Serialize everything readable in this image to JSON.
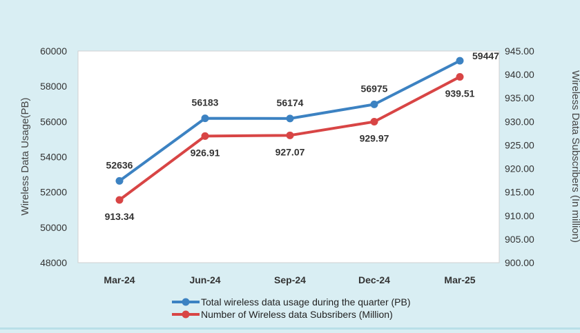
{
  "chart_data": {
    "type": "line",
    "title": "",
    "categories": [
      "Mar-24",
      "Jun-24",
      "Sep-24",
      "Dec-24",
      "Mar-25"
    ],
    "ylabel": "Wireless Data Usage(PB)",
    "ylabel_right": "Wireless Data Subscribers (In million)",
    "ylim": [
      48000,
      60000
    ],
    "y_ticks": [
      "48000",
      "50000",
      "52000",
      "54000",
      "56000",
      "58000",
      "60000"
    ],
    "ylim_right": [
      900,
      945
    ],
    "y_ticks_right": [
      "900.00",
      "905.00",
      "910.00",
      "915.00",
      "920.00",
      "925.00",
      "930.00",
      "935.00",
      "940.00",
      "945.00"
    ],
    "grid": false,
    "legend_position": "bottom",
    "series": [
      {
        "name": "Total wireless data usage during the quarter (PB)",
        "axis": "left",
        "color": "#3c82c2",
        "values": [
          52636,
          56183,
          56174,
          56975,
          59447
        ],
        "labels": [
          "52636",
          "56183",
          "56174",
          "56975",
          "59447"
        ]
      },
      {
        "name": "Number of Wireless data Subsribers (Million)",
        "axis": "right",
        "color": "#d84545",
        "values": [
          913.34,
          926.91,
          927.07,
          929.97,
          939.51
        ],
        "labels": [
          "913.34",
          "926.91",
          "927.07",
          "929.97",
          "939.51"
        ]
      }
    ]
  }
}
